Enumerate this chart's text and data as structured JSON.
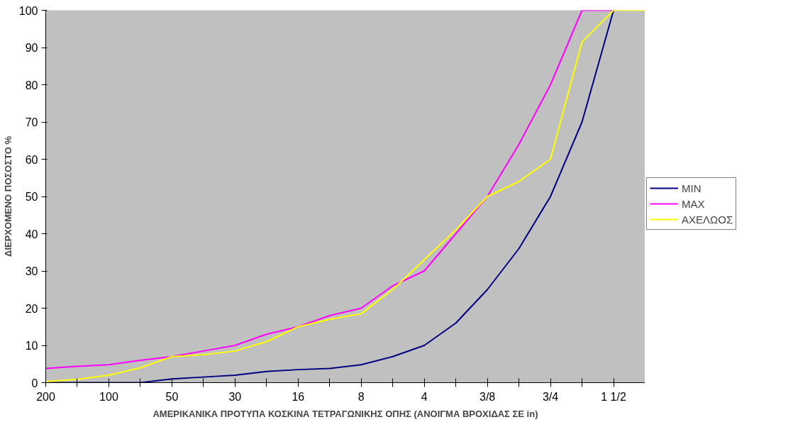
{
  "chart_data": {
    "type": "line",
    "xlabel": "ΑΜΕΡΙΚΑΝΙΚΑ ΠΡΟΤΥΠΑ ΚΟΣΚΙΝΑ ΤΕΤΡΑΓΩΝΙΚΗΣ ΟΠΗΣ (ΑΝΟΙΓΜΑ ΒΡΟΧΙΔΑΣ ΣΕ in)",
    "ylabel": "ΔΙΕΡΧΟΜΕΝΟ ΠΟΣΟΣΤΟ %",
    "categories": [
      "200",
      null,
      "100",
      null,
      "50",
      null,
      "30",
      null,
      "16",
      null,
      "8",
      null,
      "4",
      null,
      "3/8",
      null,
      "3/4",
      null,
      "1 1/2",
      null
    ],
    "series": [
      {
        "name": "MIN",
        "color": "#000080",
        "values": [
          0,
          0,
          0,
          0,
          1,
          1.5,
          2,
          3,
          3.5,
          3.8,
          4.8,
          7,
          10,
          16,
          25,
          36,
          50,
          70,
          100,
          null
        ]
      },
      {
        "name": "MAX",
        "color": "#ff00ff",
        "values": [
          3.8,
          4.4,
          4.8,
          6,
          7,
          8.5,
          10,
          13,
          15,
          18,
          20,
          26,
          30,
          40,
          50,
          64,
          80,
          100,
          100,
          null
        ]
      },
      {
        "name": "ΑΧΕΛΩΟΣ",
        "color": "#ffff00",
        "values": [
          0.3,
          0.9,
          2,
          4,
          7,
          7.5,
          8.5,
          11,
          15,
          17,
          18.5,
          25,
          33,
          41,
          50,
          54,
          60,
          91.5,
          100,
          100
        ]
      }
    ],
    "ylim": [
      0,
      100
    ],
    "yticks": [
      0,
      10,
      20,
      30,
      40,
      50,
      60,
      70,
      80,
      90,
      100
    ],
    "grid": false,
    "legend": "right",
    "marker": "none",
    "line_style": "solid"
  }
}
